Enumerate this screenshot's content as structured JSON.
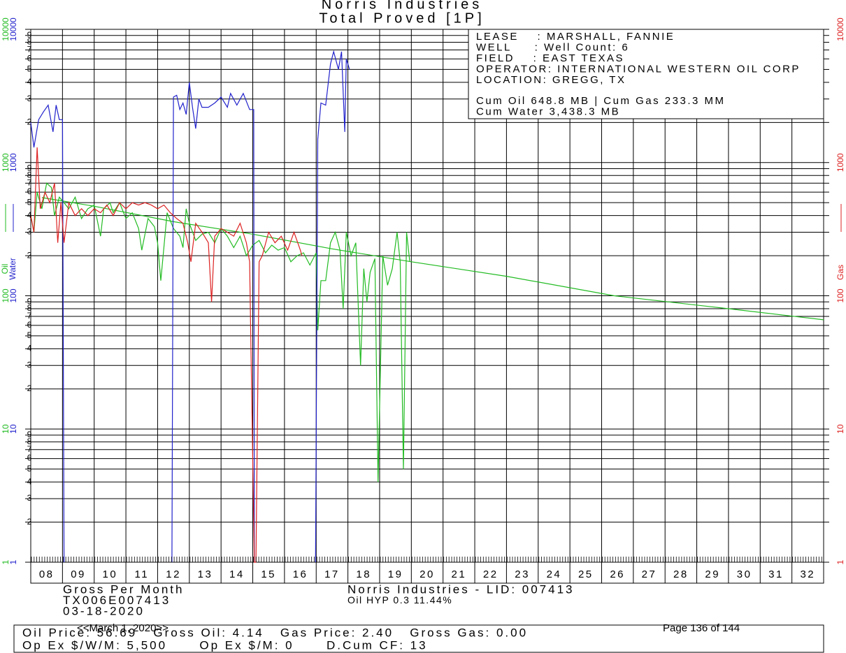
{
  "chart_data": {
    "type": "line",
    "title": "Norris Industries",
    "subtitle": "Total Proved [1P]",
    "log_y": true,
    "grid": true,
    "xlim": [
      8,
      33
    ],
    "xticks": [
      {
        "value": 8,
        "label": "08"
      },
      {
        "value": 9,
        "label": "09"
      },
      10,
      11,
      12,
      13,
      14,
      15,
      16,
      17,
      18,
      19,
      20,
      21,
      22,
      23,
      24,
      25,
      26,
      27,
      28,
      29,
      30,
      31,
      32
    ],
    "ylim": [
      1,
      10000
    ],
    "yticks": [
      1,
      2,
      3,
      4,
      5,
      6,
      7,
      8,
      9,
      10,
      {
        "value": 20,
        "label": "2"
      },
      {
        "value": 30,
        "label": "3"
      },
      {
        "value": 40,
        "label": "4"
      },
      {
        "value": 50,
        "label": "5"
      },
      {
        "value": 60,
        "label": "6"
      },
      {
        "value": 70,
        "label": "7"
      },
      {
        "value": 80,
        "label": "8"
      },
      {
        "value": 90,
        "label": "9"
      },
      100,
      {
        "value": 200,
        "label": "2"
      },
      {
        "value": 300,
        "label": "3"
      },
      {
        "value": 400,
        "label": "4"
      },
      {
        "value": 500,
        "label": "5"
      },
      {
        "value": 600,
        "label": "6"
      },
      {
        "value": 700,
        "label": "7"
      },
      {
        "value": 800,
        "label": "8"
      },
      {
        "value": 900,
        "label": "9"
      },
      1000,
      {
        "value": 2000,
        "label": "2"
      },
      {
        "value": 3000,
        "label": "3"
      },
      {
        "value": 4000,
        "label": "4"
      },
      {
        "value": 5000,
        "label": "5"
      },
      {
        "value": 6000,
        "label": "6"
      },
      {
        "value": 7000,
        "label": "7"
      },
      {
        "value": 8000,
        "label": "8"
      },
      {
        "value": 9000,
        "label": "9"
      },
      10000
    ],
    "left_axis_colors": [
      "#22bb22",
      "#2222cc"
    ],
    "right_axis_color": "#dd2222",
    "series": [
      {
        "name": "Oil",
        "color": "#22bb22",
        "side": "left",
        "x": [
          8.0,
          8.1,
          8.2,
          8.35,
          8.5,
          8.65,
          8.75,
          8.9,
          9.05,
          9.2,
          9.4,
          9.6,
          9.8,
          10.0,
          10.2,
          10.3,
          10.5,
          10.6,
          10.8,
          11.0,
          11.2,
          11.4,
          11.5,
          11.7,
          11.9,
          12.0,
          12.1,
          12.3,
          12.5,
          12.7,
          12.8,
          12.9,
          13.0,
          13.2,
          13.4,
          13.6,
          13.8,
          14.0,
          14.2,
          14.4,
          14.6,
          14.8,
          15.0,
          15.2,
          15.4,
          15.6,
          15.8,
          16.0,
          16.2,
          16.4,
          16.6,
          16.8,
          17.0,
          17.05,
          17.15,
          17.3,
          17.45,
          17.6,
          17.75,
          17.85,
          17.95,
          18.1,
          18.25,
          18.4,
          18.5,
          18.6,
          18.7,
          18.85,
          18.95,
          19.1,
          19.25,
          19.4,
          19.55,
          19.65,
          19.75,
          19.85,
          19.95
        ],
        "values": [
          400,
          300,
          600,
          450,
          700,
          650,
          400,
          550,
          500,
          450,
          550,
          380,
          450,
          480,
          280,
          450,
          500,
          420,
          500,
          380,
          420,
          320,
          220,
          380,
          330,
          250,
          130,
          420,
          320,
          280,
          230,
          450,
          350,
          260,
          290,
          300,
          250,
          320,
          280,
          230,
          280,
          200,
          240,
          260,
          210,
          240,
          220,
          230,
          180,
          200,
          210,
          170,
          210,
          55,
          130,
          130,
          250,
          300,
          220,
          80,
          300,
          200,
          250,
          30,
          160,
          90,
          150,
          190,
          4,
          200,
          120,
          160,
          300,
          180,
          5,
          300,
          180
        ]
      },
      {
        "name": "Water",
        "color": "#2222cc",
        "side": "left",
        "x": [
          8.0,
          8.1,
          8.25,
          8.4,
          8.55,
          8.7,
          8.8,
          8.9,
          9.0,
          9.05,
          null,
          12.45,
          12.5,
          12.6,
          12.7,
          12.8,
          12.9,
          13.0,
          13.1,
          13.2,
          13.3,
          13.4,
          13.6,
          13.8,
          14.0,
          14.2,
          14.3,
          14.5,
          14.7,
          14.9,
          15.03,
          15.05,
          null,
          16.98,
          17.05,
          17.15,
          17.3,
          17.45,
          17.55,
          17.7,
          17.8,
          17.9,
          17.95,
          18.05
        ],
        "values": [
          2000,
          1300,
          2100,
          2400,
          2700,
          1700,
          2700,
          2100,
          2100,
          1,
          null,
          1,
          3100,
          3200,
          2500,
          2800,
          2300,
          4000,
          2600,
          1800,
          3000,
          2600,
          2600,
          2800,
          3100,
          2600,
          3300,
          2700,
          3300,
          2500,
          2500,
          1,
          null,
          1,
          1500,
          2800,
          2700,
          5500,
          6800,
          5000,
          6800,
          1700,
          6000,
          5000
        ]
      },
      {
        "name": "Gas",
        "color": "#dd2222",
        "side": "right",
        "x": [
          8.0,
          8.1,
          8.2,
          8.3,
          8.45,
          8.6,
          8.75,
          8.85,
          8.95,
          9.05,
          9.2,
          9.4,
          9.6,
          9.8,
          10.0,
          10.2,
          10.4,
          10.6,
          10.8,
          11.0,
          11.2,
          11.4,
          11.6,
          11.8,
          12.0,
          12.2,
          12.4,
          12.6,
          12.8,
          12.95,
          13.05,
          13.2,
          13.4,
          13.6,
          13.7,
          13.8,
          14.0,
          14.2,
          14.4,
          14.6,
          14.8,
          14.9,
          15.05,
          15.1,
          15.2,
          15.3,
          15.5,
          15.7,
          15.9,
          16.1,
          16.3,
          16.5,
          16.55
        ],
        "values": [
          400,
          300,
          1300,
          450,
          600,
          500,
          700,
          250,
          500,
          250,
          500,
          400,
          450,
          400,
          450,
          420,
          480,
          400,
          500,
          450,
          500,
          480,
          500,
          480,
          450,
          480,
          420,
          380,
          350,
          250,
          180,
          350,
          300,
          250,
          90,
          280,
          320,
          300,
          280,
          350,
          250,
          180,
          1,
          1,
          180,
          200,
          300,
          250,
          280,
          220,
          300,
          220,
          200
        ]
      }
    ],
    "forecast": {
      "color": "#22bb22",
      "x": [
        8.35,
        10,
        12.5,
        15,
        17.5,
        20,
        23,
        26.4,
        30,
        33
      ],
      "values": [
        546,
        470,
        360,
        290,
        225,
        180,
        140,
        100,
        80,
        66
      ]
    },
    "info_box": [
      "LEASE    : MARSHALL, FANNIE",
      "WELL     : Well Count: 6",
      "FIELD    : EAST TEXAS",
      "OPERATOR: INTERNATIONAL WESTERN OIL CORP",
      "LOCATION: GREGG, TX",
      "Cum Oil 648.8 MB | Cum Gas 233.3 MM",
      "Cum Water 3,438.3 MB"
    ],
    "footer": {
      "left": [
        "Gross Per Month",
        "TX006E007413",
        "03-18-2020"
      ],
      "center": [
        "Norris Industries - LID: 007413",
        "Oil HYP 0.3 11.44%"
      ],
      "summary": [
        "Oil Price: 56.69   Gross Oil: 4.14   Gas Price: 2.40   Gross Gas: 0.00",
        "Op Ex $/W/M: 5,500      Op Ex $/M: 0      D.Cum CF: 13"
      ],
      "date_range": "<<March 1, 2020>>",
      "page": "Page 136 of 144"
    }
  }
}
